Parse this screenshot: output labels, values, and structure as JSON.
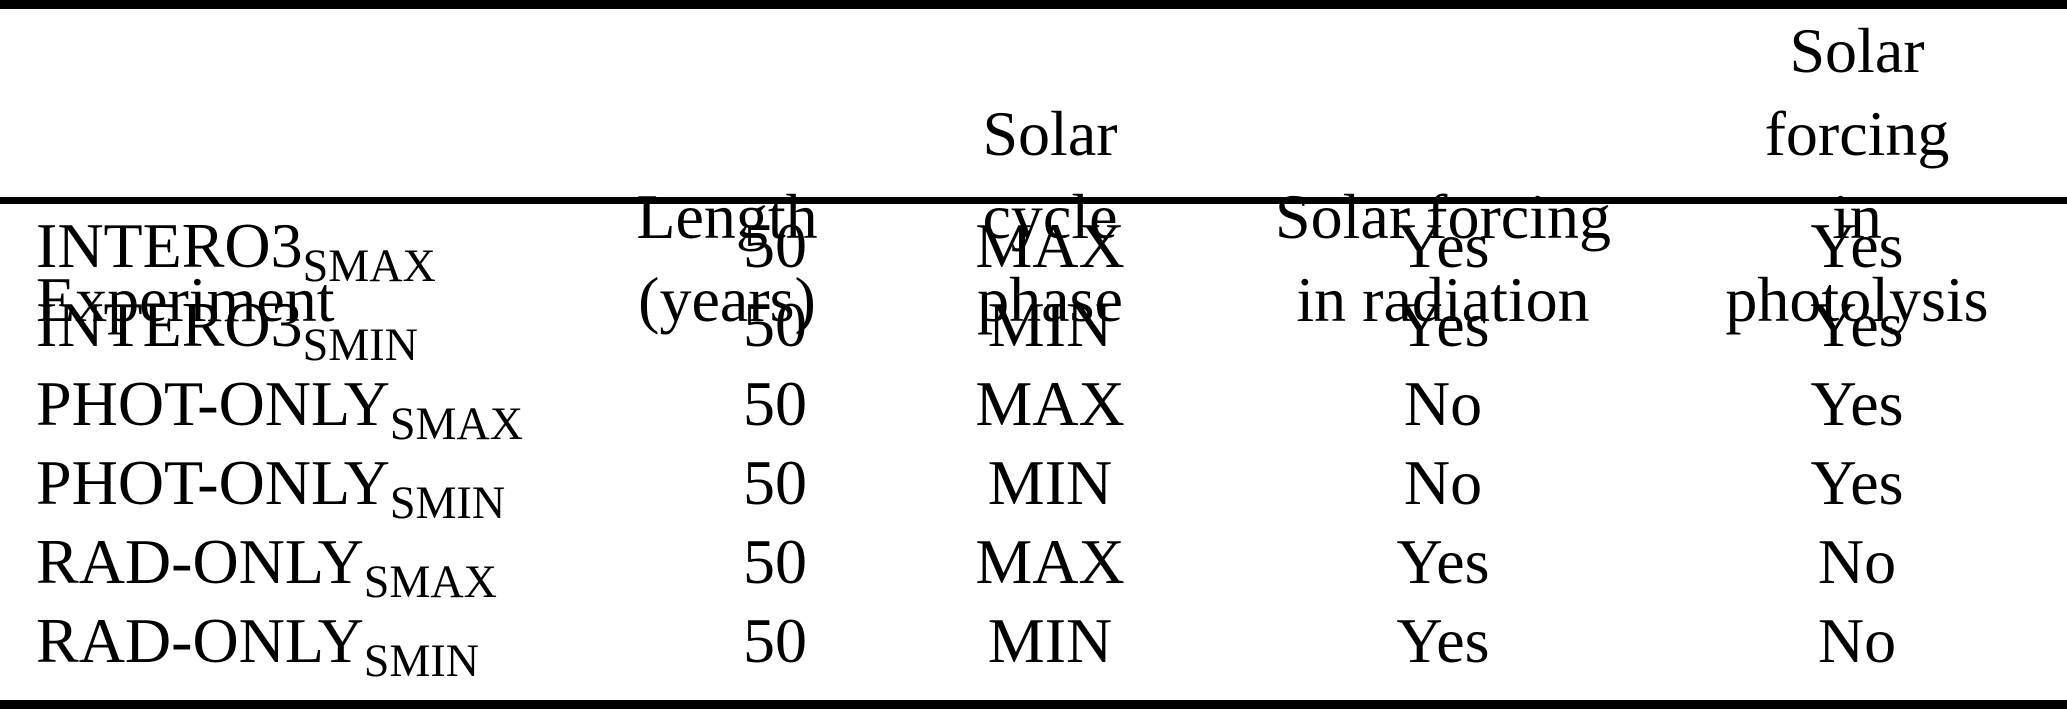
{
  "table": {
    "columns": [
      {
        "header": "Experiment"
      },
      {
        "header_line1": "Length",
        "header_line2": "(years)"
      },
      {
        "header_line1": "Solar",
        "header_line2": "cycle phase"
      },
      {
        "header_line1": "Solar forcing",
        "header_line2": "in radiation"
      },
      {
        "header_line1": "Solar forcing",
        "header_line2": "in photolysis"
      }
    ],
    "rows": [
      {
        "base": "INTERO3",
        "sub": "SMAX",
        "length": "50",
        "phase": "MAX",
        "radiation": "Yes",
        "photolysis": "Yes"
      },
      {
        "base": "INTERO3",
        "sub": "SMIN",
        "length": "50",
        "phase": "MIN",
        "radiation": "Yes",
        "photolysis": "Yes"
      },
      {
        "base": "PHOT-ONLY",
        "sub": "SMAX",
        "length": "50",
        "phase": "MAX",
        "radiation": "No",
        "photolysis": "Yes"
      },
      {
        "base": "PHOT-ONLY",
        "sub": "SMIN",
        "length": "50",
        "phase": "MIN",
        "radiation": "No",
        "photolysis": "Yes"
      },
      {
        "base": "RAD-ONLY",
        "sub": "SMAX",
        "length": "50",
        "phase": "MAX",
        "radiation": "Yes",
        "photolysis": "No"
      },
      {
        "base": "RAD-ONLY",
        "sub": "SMIN",
        "length": "50",
        "phase": "MIN",
        "radiation": "Yes",
        "photolysis": "No"
      }
    ],
    "colors": {
      "text": "#000000",
      "background": "#ffffff",
      "rule": "#000000"
    }
  }
}
